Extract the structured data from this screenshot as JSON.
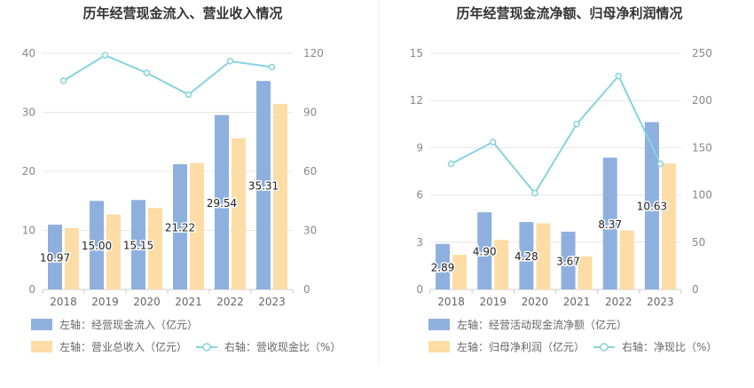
{
  "chart_data": [
    {
      "type": "bar",
      "title": "历年经营现金流入、营业收入情况",
      "categories": [
        "2018",
        "2019",
        "2020",
        "2021",
        "2022",
        "2023"
      ],
      "y_left": {
        "ticks": [
          "0",
          "10",
          "20",
          "30",
          "40"
        ],
        "ylim": [
          0,
          40
        ]
      },
      "y_right": {
        "ticks": [
          "0",
          "30",
          "60",
          "90",
          "120"
        ],
        "ylim": [
          0,
          120
        ]
      },
      "series": [
        {
          "name": "左轴：经营现金流入（亿元）",
          "kind": "bar",
          "axis": "left",
          "color": "#8eb0de",
          "values": [
            10.97,
            15.0,
            15.15,
            21.22,
            29.54,
            35.31
          ],
          "labels": [
            "10.97",
            "15.00",
            "15.15",
            "21.22",
            "29.54",
            "35.31"
          ]
        },
        {
          "name": "左轴：营业总收入（亿元）",
          "kind": "bar",
          "axis": "left",
          "color": "#fddca5",
          "values": [
            10.4,
            12.7,
            13.8,
            21.4,
            25.6,
            31.4
          ]
        },
        {
          "name": "右轴：营收现金比（%）",
          "kind": "line",
          "axis": "right",
          "color": "#86d3de",
          "values": [
            106,
            119,
            110,
            99,
            116,
            113
          ]
        }
      ]
    },
    {
      "type": "bar",
      "title": "历年经营现金流净额、归母净利润情况",
      "categories": [
        "2018",
        "2019",
        "2020",
        "2021",
        "2022",
        "2023"
      ],
      "y_left": {
        "ticks": [
          "0",
          "3",
          "6",
          "9",
          "12",
          "15"
        ],
        "ylim": [
          0,
          15
        ]
      },
      "y_right": {
        "ticks": [
          "0",
          "50",
          "100",
          "150",
          "200",
          "250"
        ],
        "ylim": [
          0,
          250
        ]
      },
      "series": [
        {
          "name": "左轴：经营活动现金流净额（亿元）",
          "kind": "bar",
          "axis": "left",
          "color": "#8eb0de",
          "values": [
            2.89,
            4.9,
            4.28,
            3.67,
            8.37,
            10.63
          ],
          "labels": [
            "2.89",
            "4.90",
            "4.28",
            "3.67",
            "8.37",
            "10.63"
          ]
        },
        {
          "name": "左轴：归母净利润（亿元）",
          "kind": "bar",
          "axis": "left",
          "color": "#fddca5",
          "values": [
            2.2,
            3.15,
            4.2,
            2.1,
            3.75,
            8.0
          ]
        },
        {
          "name": "右轴：净现比（%）",
          "kind": "line",
          "axis": "right",
          "color": "#86d3de",
          "values": [
            133,
            156,
            102,
            175,
            226,
            133
          ]
        }
      ]
    }
  ]
}
